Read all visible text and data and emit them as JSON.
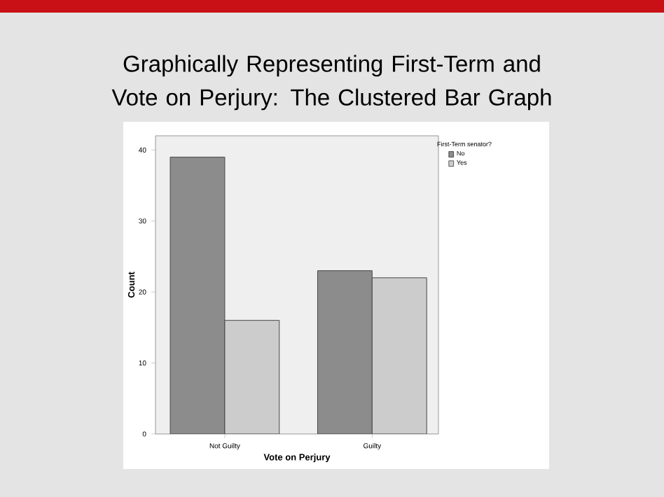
{
  "chart_data": {
    "type": "bar",
    "title": "Graphically Representing First-Term and Vote on Perjury: The Clustered Bar Graph",
    "xlabel": "Vote on Perjury",
    "ylabel": "Count",
    "legend_title": "First-Term senator?",
    "categories": [
      "Not Guilty",
      "Guilty"
    ],
    "series": [
      {
        "name": "No",
        "color": "#8c8c8c",
        "values": [
          39,
          23
        ]
      },
      {
        "name": "Yes",
        "color": "#cccccc",
        "values": [
          16,
          22
        ]
      }
    ],
    "ylim": [
      0,
      42
    ],
    "yticks": [
      0,
      10,
      20,
      30,
      40
    ],
    "grid": false,
    "legend": "top right"
  }
}
